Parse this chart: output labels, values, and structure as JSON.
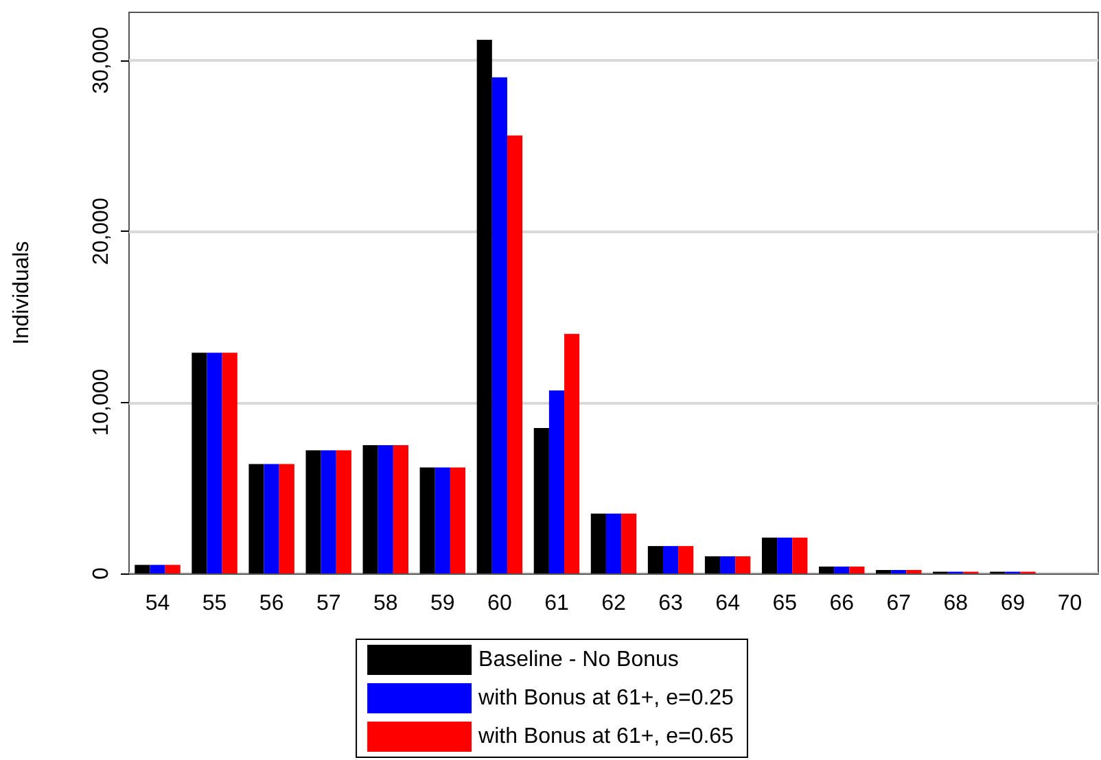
{
  "chart_data": {
    "type": "bar",
    "ylabel": "Individuals",
    "categories": [
      "54",
      "55",
      "56",
      "57",
      "58",
      "59",
      "60",
      "61",
      "62",
      "63",
      "64",
      "65",
      "66",
      "67",
      "68",
      "69",
      "70"
    ],
    "series": [
      {
        "name": "Baseline - No Bonus",
        "color": "#000000",
        "values": [
          500,
          12900,
          6400,
          7200,
          7500,
          6200,
          31200,
          8500,
          3500,
          1600,
          1000,
          2100,
          400,
          200,
          100,
          100,
          0
        ]
      },
      {
        "name": "with Bonus at 61+, e=0.25",
        "color": "#0000ff",
        "values": [
          500,
          12900,
          6400,
          7200,
          7500,
          6200,
          29000,
          10700,
          3500,
          1600,
          1000,
          2100,
          400,
          200,
          100,
          100,
          0
        ]
      },
      {
        "name": "with Bonus at 61+, e=0.65",
        "color": "#ff0000",
        "values": [
          500,
          12900,
          6400,
          7200,
          7500,
          6200,
          25600,
          14000,
          3500,
          1600,
          1000,
          2100,
          400,
          200,
          100,
          100,
          0
        ]
      }
    ],
    "ylim": [
      0,
      32800
    ],
    "yticks": [
      0,
      {
        "value": 10000,
        "label": "10,000"
      },
      {
        "value": 20000,
        "label": "20,000"
      },
      {
        "value": 30000,
        "label": "30,000"
      }
    ],
    "grid": "y",
    "legend": "bottom"
  }
}
